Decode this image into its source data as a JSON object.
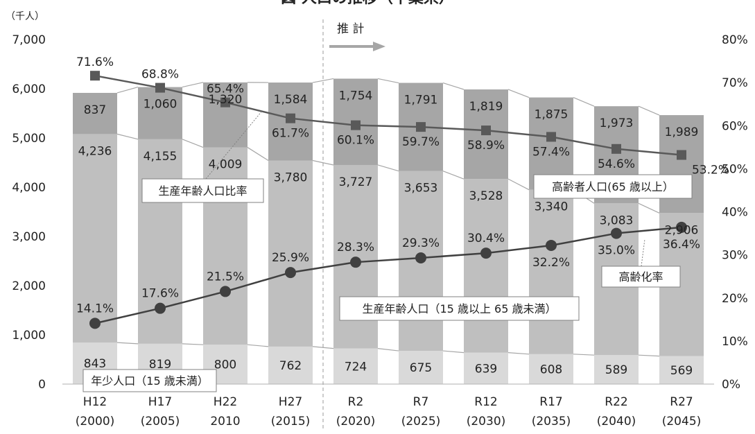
{
  "chart_data": {
    "type": "bar",
    "stacked": true,
    "title": "図 人口の推移（千葉県）",
    "unit_label": "（千人）",
    "projection_label": "推 計",
    "categories": [
      [
        "H12",
        "(2000)"
      ],
      [
        "H17",
        "(2005)"
      ],
      [
        "H22",
        "2010"
      ],
      [
        "H27",
        "(2015)"
      ],
      [
        "R2",
        "(2020)"
      ],
      [
        "R7",
        "(2025)"
      ],
      [
        "R12",
        "(2030)"
      ],
      [
        "R17",
        "(2035)"
      ],
      [
        "R22",
        "(2040)"
      ],
      [
        "R27",
        "(2045)"
      ]
    ],
    "y_left": {
      "min": 0,
      "max": 7000,
      "ticks": [
        "0",
        "1,000",
        "2,000",
        "3,000",
        "4,000",
        "5,000",
        "6,000",
        "7,000"
      ]
    },
    "y_right": {
      "min": 0,
      "max": 80,
      "ticks": [
        "0%",
        "10%",
        "20%",
        "30%",
        "40%",
        "50%",
        "60%",
        "70%",
        "80%"
      ]
    },
    "bar_series": [
      {
        "name": "年少人口（15 歳未満）",
        "color": "#d9d9d9",
        "values": [
          843,
          819,
          800,
          762,
          724,
          675,
          639,
          608,
          589,
          569
        ],
        "labels": [
          "843",
          "819",
          "800",
          "762",
          "724",
          "675",
          "639",
          "608",
          "589",
          "569"
        ]
      },
      {
        "name": "生産年齢人口（15 歳以上 65 歳未満）",
        "color": "#bfbfbf",
        "values": [
          4236,
          4155,
          4009,
          3780,
          3727,
          3653,
          3528,
          3340,
          3083,
          2906
        ],
        "labels": [
          "4,236",
          "4,155",
          "4,009",
          "3,780",
          "3,727",
          "3,653",
          "3,528",
          "3,340",
          "3,083",
          "2,906"
        ]
      },
      {
        "name": "高齢者人口(65 歳以上）",
        "color": "#a6a6a6",
        "values": [
          837,
          1060,
          1320,
          1584,
          1754,
          1791,
          1819,
          1875,
          1973,
          1989
        ],
        "labels": [
          "837",
          "1,060",
          "1,320",
          "1,584",
          "1,754",
          "1,791",
          "1,819",
          "1,875",
          "1,973",
          "1,989"
        ]
      }
    ],
    "line_series": [
      {
        "name": "生産年齢人口比率",
        "color": "#595959",
        "marker": "square",
        "values": [
          71.6,
          68.8,
          65.4,
          61.7,
          60.1,
          59.7,
          58.9,
          57.4,
          54.6,
          53.2
        ],
        "labels": [
          "71.6%",
          "68.8%",
          "65.4%",
          "61.7%",
          "60.1%",
          "59.7%",
          "58.9%",
          "57.4%",
          "54.6%",
          "53.2%"
        ]
      },
      {
        "name": "高齢化率",
        "color": "#404040",
        "marker": "circle",
        "values": [
          14.1,
          17.6,
          21.5,
          25.9,
          28.3,
          29.3,
          30.4,
          32.2,
          35.0,
          36.4
        ],
        "labels": [
          "14.1%",
          "17.6%",
          "21.5%",
          "25.9%",
          "28.3%",
          "29.3%",
          "30.4%",
          "32.2%",
          "35.0%",
          "36.4%"
        ]
      }
    ],
    "grid": false,
    "legend": "callout-boxes"
  }
}
